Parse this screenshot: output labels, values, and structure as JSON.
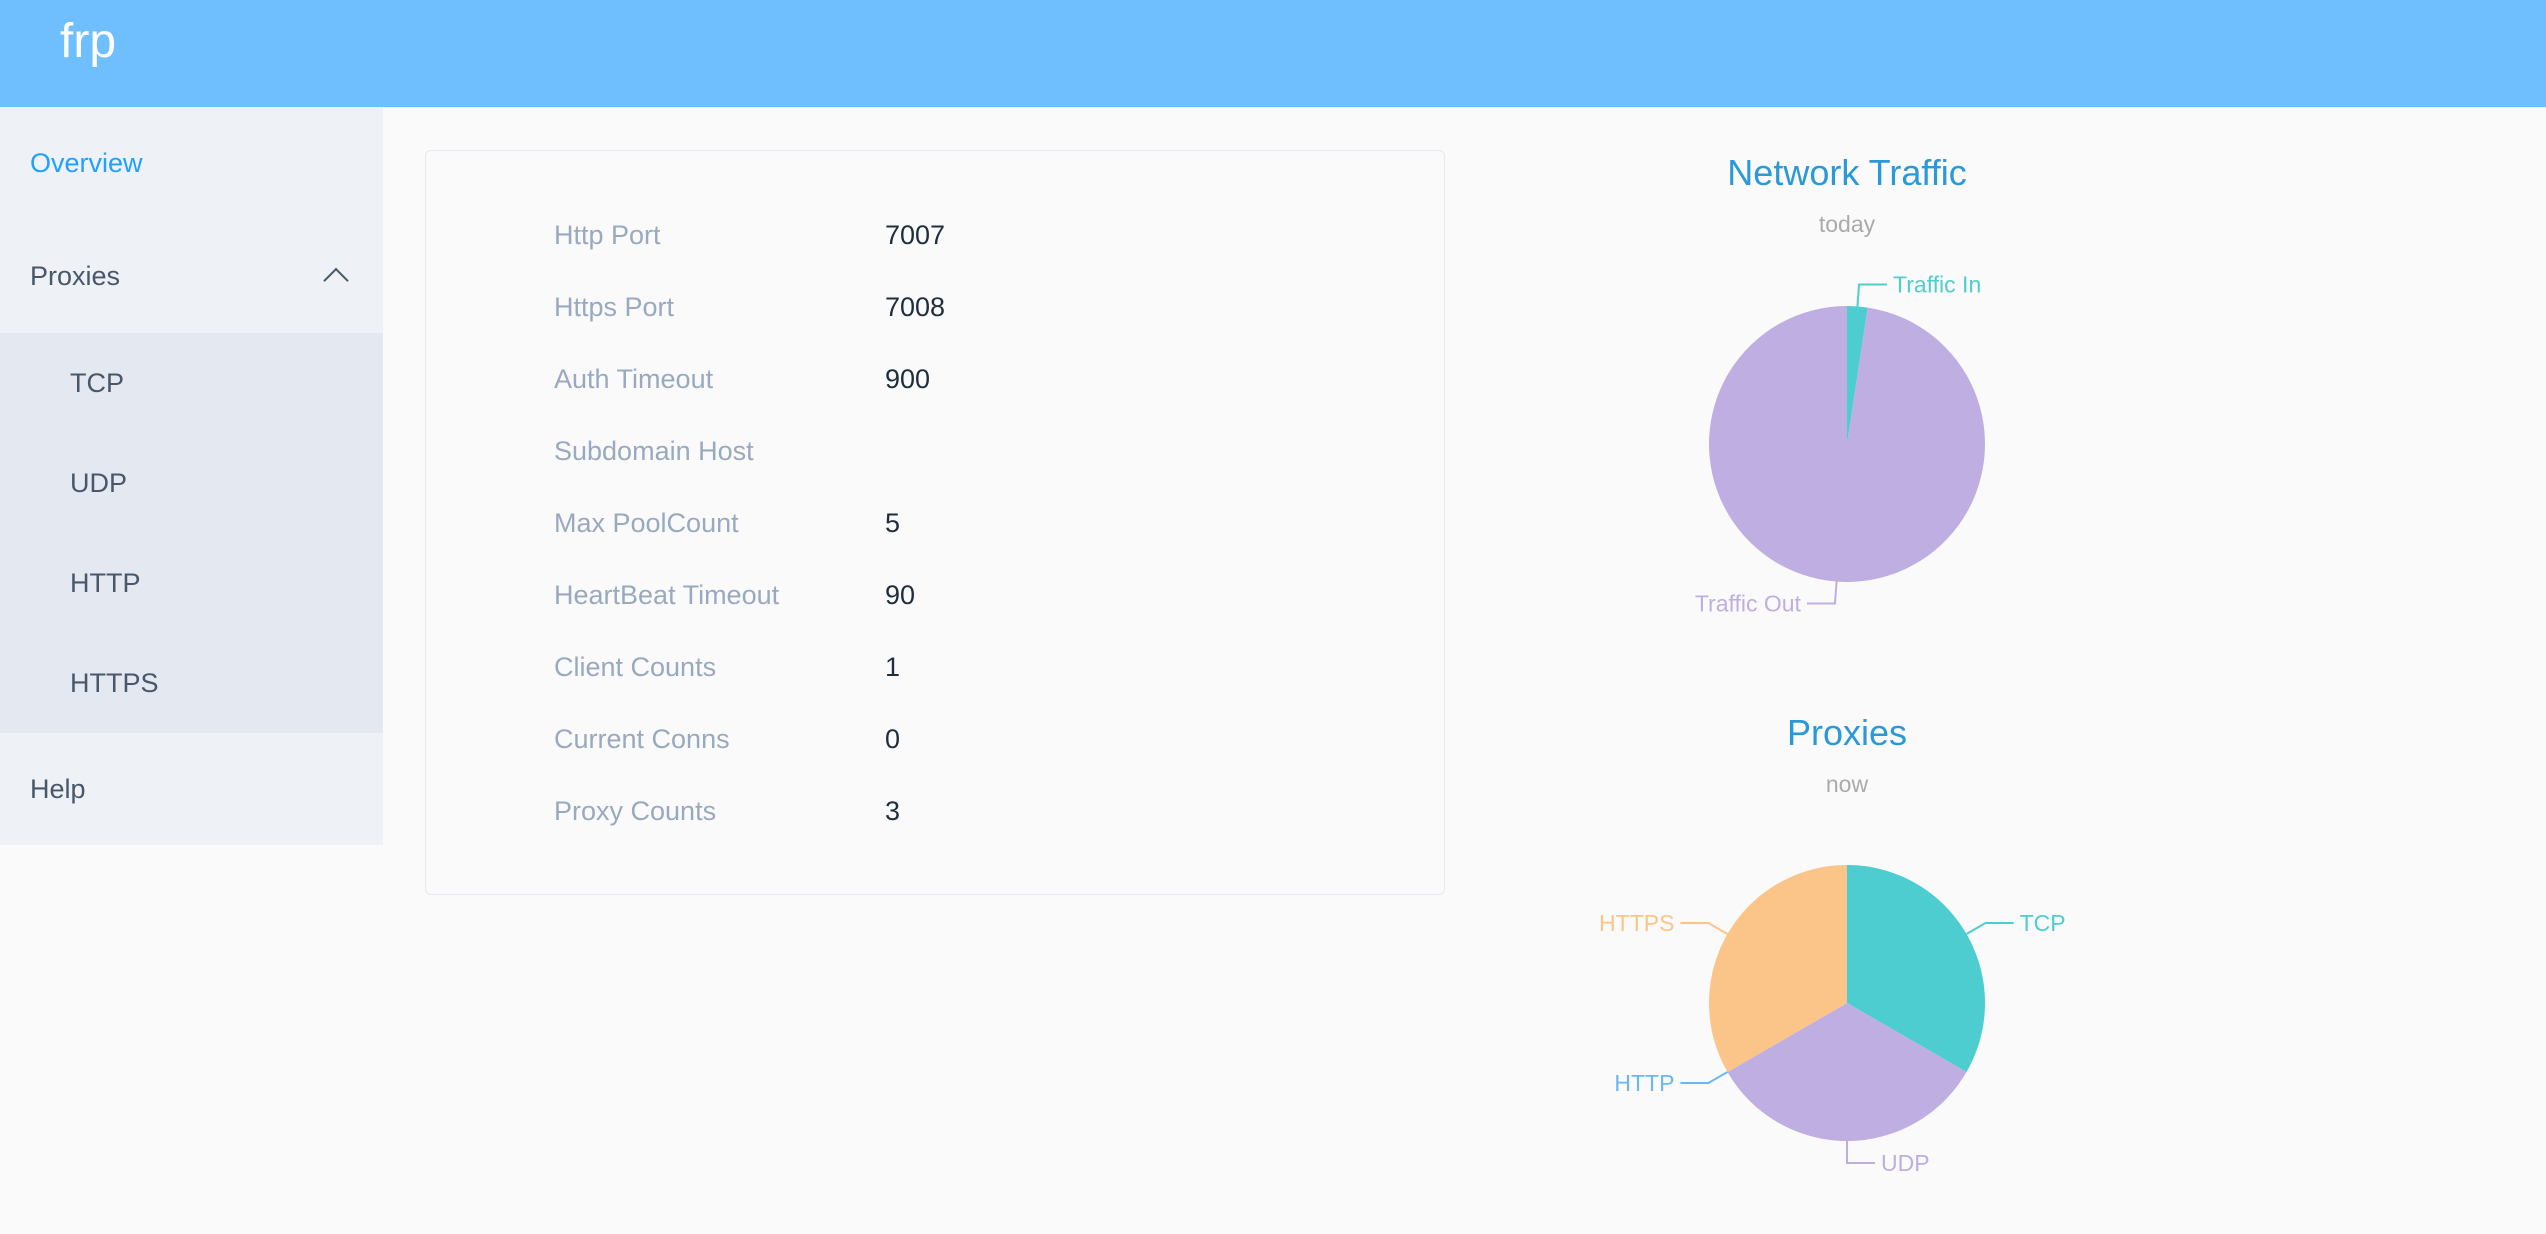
{
  "header": {
    "title": "frp"
  },
  "sidebar": {
    "items": [
      {
        "label": "Overview"
      },
      {
        "label": "Proxies"
      },
      {
        "label": "TCP"
      },
      {
        "label": "UDP"
      },
      {
        "label": "HTTP"
      },
      {
        "label": "HTTPS"
      },
      {
        "label": "Help"
      }
    ]
  },
  "info": {
    "rows": [
      {
        "key": "Http Port",
        "value": "7007"
      },
      {
        "key": "Https Port",
        "value": "7008"
      },
      {
        "key": "Auth Timeout",
        "value": "900"
      },
      {
        "key": "Subdomain Host",
        "value": ""
      },
      {
        "key": "Max PoolCount",
        "value": "5"
      },
      {
        "key": "HeartBeat Timeout",
        "value": "90"
      },
      {
        "key": "Client Counts",
        "value": "1"
      },
      {
        "key": "Current Conns",
        "value": "0"
      },
      {
        "key": "Proxy Counts",
        "value": "3"
      }
    ]
  },
  "colors": {
    "header": "#6fbfff",
    "active": "#20a0ff",
    "title": "#2b98d8"
  },
  "chart_data": [
    {
      "type": "pie",
      "title": "Network Traffic",
      "subtitle": "today",
      "categories": [
        "Traffic In",
        "Traffic Out"
      ],
      "values_percent": [
        2.4,
        97.6
      ],
      "colors": [
        "#4ecdd1",
        "#bfaee2"
      ]
    },
    {
      "type": "pie",
      "title": "Proxies",
      "subtitle": "now",
      "categories": [
        "TCP",
        "UDP",
        "HTTP",
        "HTTPS"
      ],
      "values": [
        1,
        1,
        0,
        1
      ],
      "colors": [
        "#4ecdd1",
        "#bfaee2",
        "#6ab8f0",
        "#fbc58a"
      ]
    }
  ]
}
